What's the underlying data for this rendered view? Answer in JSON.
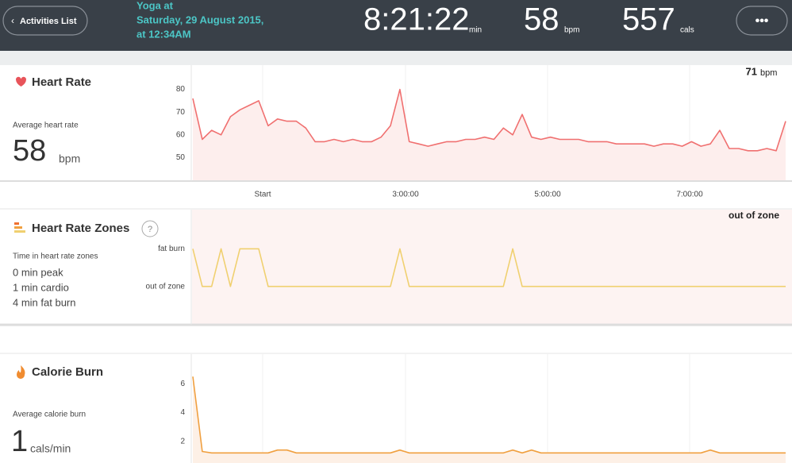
{
  "header": {
    "back_button": "Activities List",
    "title": [
      "Yoga at",
      "Saturday, 29 August 2015,",
      "at 12:34AM"
    ],
    "stats": [
      {
        "value": "8:21:22",
        "unit": "min"
      },
      {
        "value": 58,
        "unit": "bpm"
      },
      {
        "value": 557,
        "unit": "cals"
      }
    ],
    "menu": "•••"
  },
  "heart_rate": {
    "title": "Heart Rate",
    "subtitle": "Average heart rate",
    "average": 58,
    "unit": "bpm",
    "current": {
      "value": 71,
      "unit": "bpm"
    },
    "chart": {
      "type": "line",
      "color": "#f07070",
      "fill": "#fdeeed",
      "ylim": [
        40,
        90
      ],
      "yticks": [
        50,
        60,
        70,
        80
      ],
      "values": [
        76,
        58,
        62,
        60,
        68,
        71,
        73,
        75,
        64,
        67,
        66,
        66,
        63,
        57,
        57,
        58,
        57,
        58,
        57,
        57,
        59,
        64,
        80,
        57,
        56,
        55,
        56,
        57,
        57,
        58,
        58,
        59,
        58,
        63,
        60,
        69,
        59,
        58,
        59,
        58,
        58,
        58,
        57,
        57,
        57,
        56,
        56,
        56,
        56,
        55,
        56,
        56,
        55,
        57,
        55,
        56,
        62,
        54,
        54,
        53,
        53,
        54,
        53,
        66
      ]
    }
  },
  "x_axis": {
    "labels": [
      "Start",
      "3:00:00",
      "5:00:00",
      "7:00:00"
    ]
  },
  "zones": {
    "title": "Heart Rate Zones",
    "help": "?",
    "subtitle": "Time in heart rate zones",
    "lines": [
      "0 min peak",
      "1 min cardio",
      "4 min fat burn"
    ],
    "current": "out of zone",
    "chart": {
      "type": "line",
      "color": "#f0d070",
      "fill": "#fdf3f2",
      "ylim": [
        -1,
        2
      ],
      "yticks": [
        {
          "value": 0,
          "label": "out of zone"
        },
        {
          "value": 1,
          "label": "fat burn"
        }
      ],
      "values": [
        1,
        0,
        0,
        1,
        0,
        1,
        1,
        1,
        0,
        0,
        0,
        0,
        0,
        0,
        0,
        0,
        0,
        0,
        0,
        0,
        0,
        0,
        1,
        0,
        0,
        0,
        0,
        0,
        0,
        0,
        0,
        0,
        0,
        0,
        1,
        0,
        0,
        0,
        0,
        0,
        0,
        0,
        0,
        0,
        0,
        0,
        0,
        0,
        0,
        0,
        0,
        0,
        0,
        0,
        0,
        0,
        0,
        0,
        0,
        0,
        0,
        0,
        0,
        0
      ]
    }
  },
  "calories": {
    "title": "Calorie Burn",
    "subtitle": "Average calorie burn",
    "average": 1,
    "unit": "cals/min",
    "chart": {
      "type": "line",
      "color": "#f0a040",
      "fill": "#fdf0e6",
      "ylim": [
        0.5,
        8
      ],
      "yticks": [
        2,
        4,
        6
      ],
      "values": [
        6.5,
        1.3,
        1.2,
        1.2,
        1.2,
        1.2,
        1.2,
        1.2,
        1.2,
        1.4,
        1.4,
        1.2,
        1.2,
        1.2,
        1.2,
        1.2,
        1.2,
        1.2,
        1.2,
        1.2,
        1.2,
        1.2,
        1.4,
        1.2,
        1.2,
        1.2,
        1.2,
        1.2,
        1.2,
        1.2,
        1.2,
        1.2,
        1.2,
        1.2,
        1.4,
        1.2,
        1.4,
        1.2,
        1.2,
        1.2,
        1.2,
        1.2,
        1.2,
        1.2,
        1.2,
        1.2,
        1.2,
        1.2,
        1.2,
        1.2,
        1.2,
        1.2,
        1.2,
        1.2,
        1.2,
        1.4,
        1.2,
        1.2,
        1.2,
        1.2,
        1.2,
        1.2,
        1.2,
        1.2
      ]
    }
  }
}
